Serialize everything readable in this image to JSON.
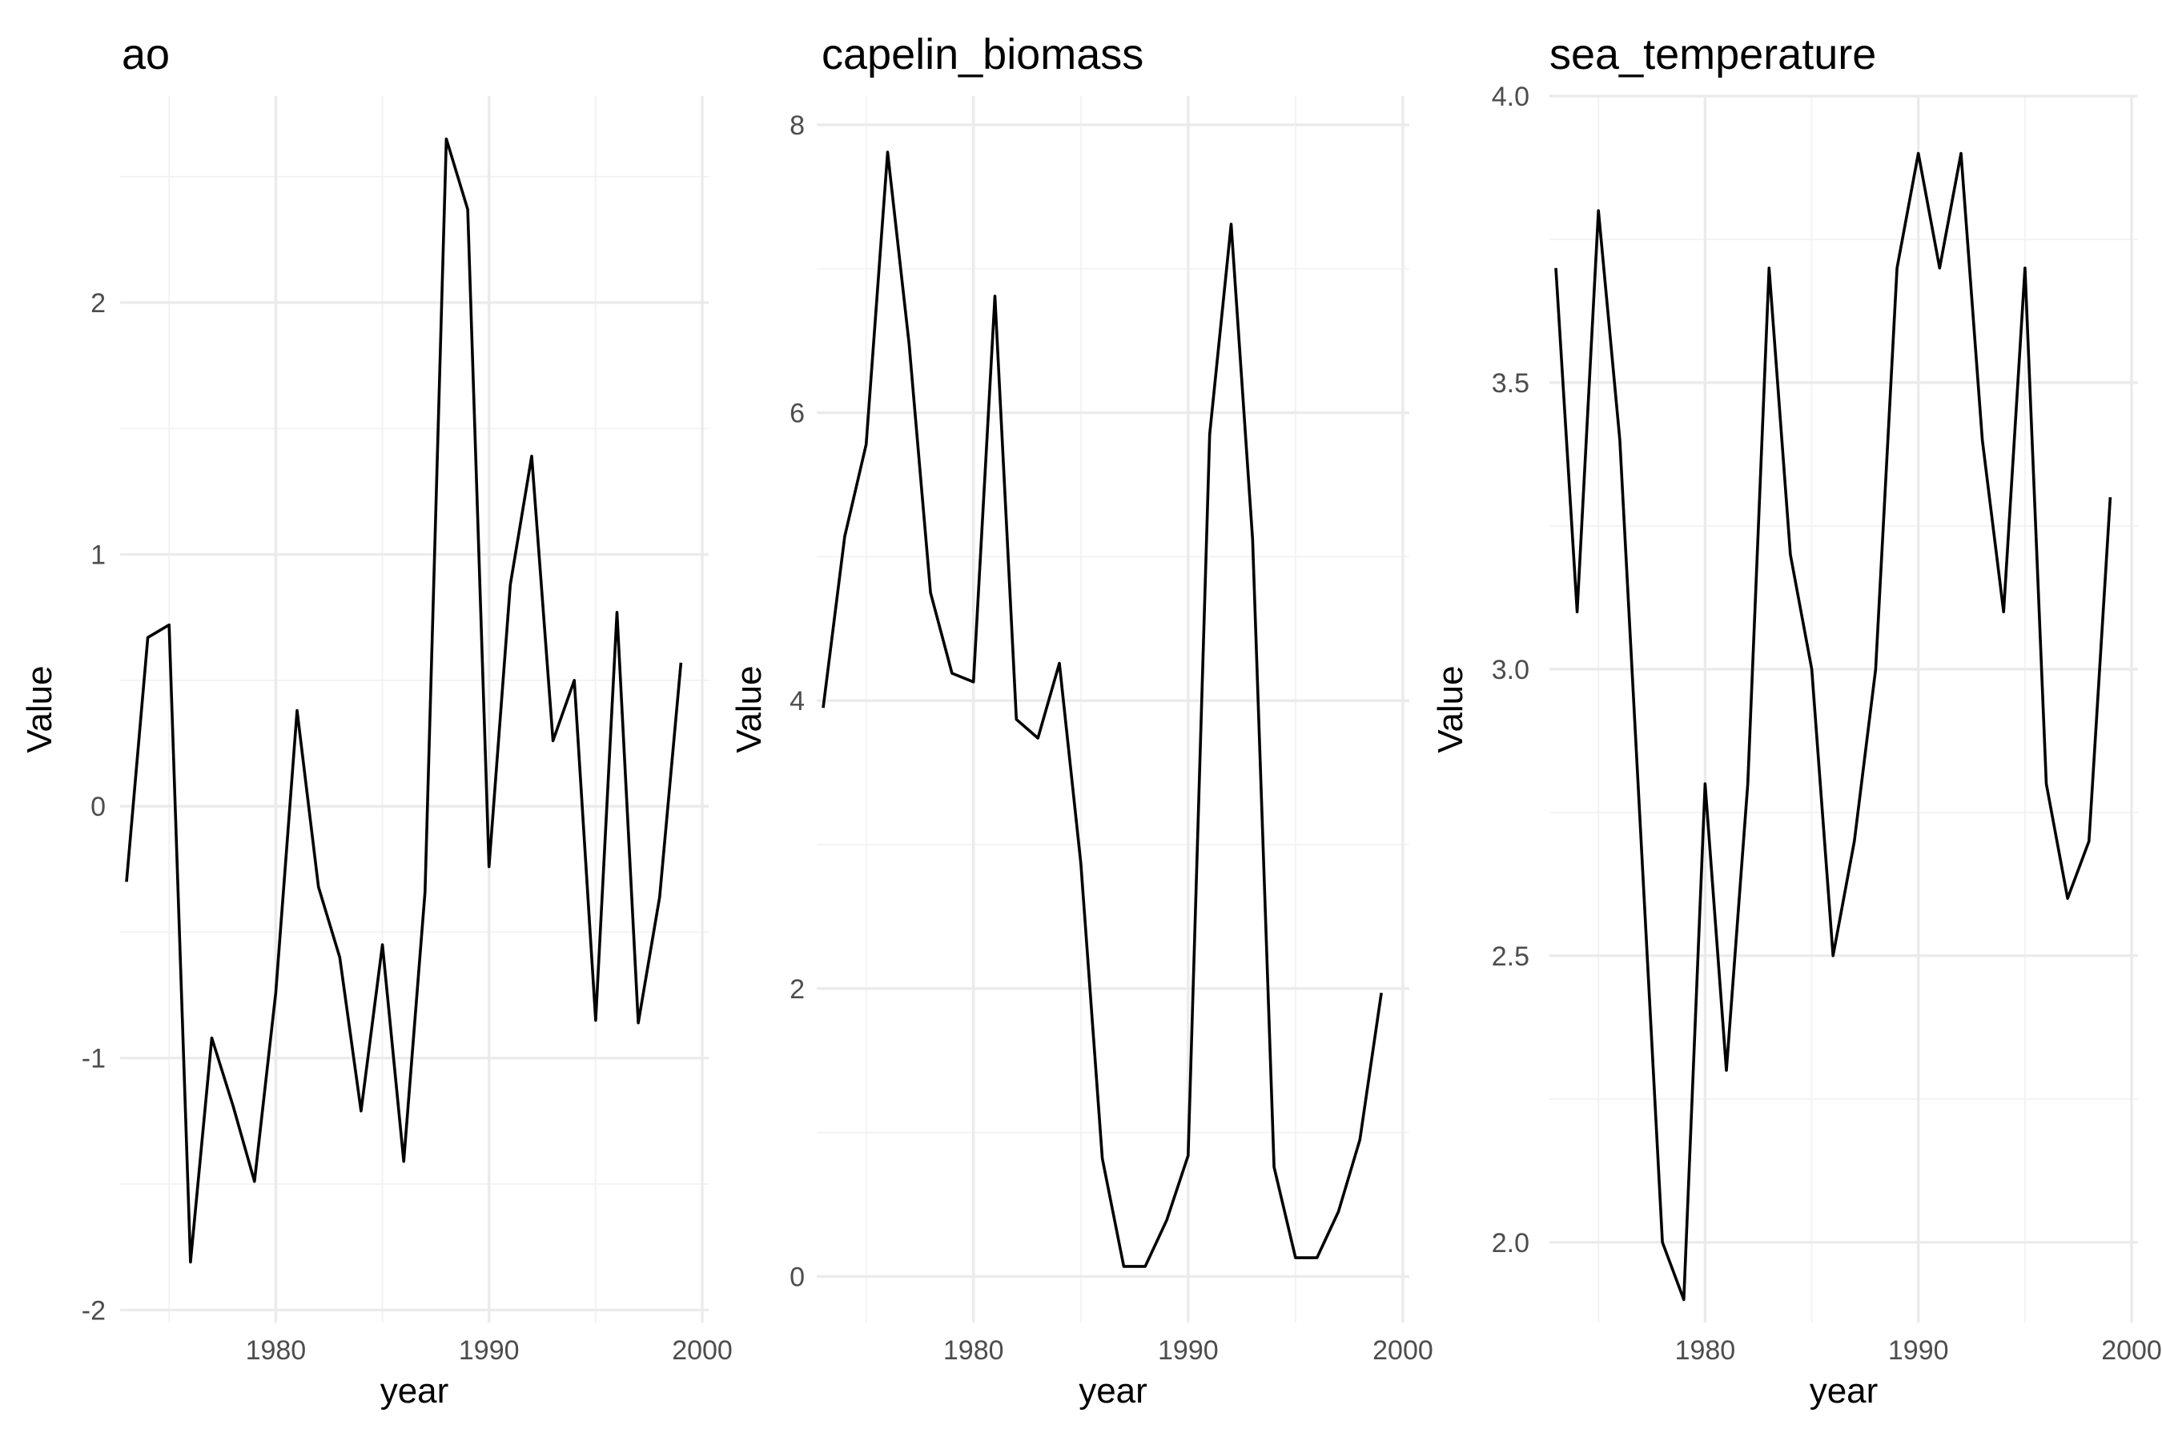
{
  "chart_data": [
    {
      "type": "line",
      "title": "ao",
      "xlabel": "year",
      "ylabel": "Value",
      "xlim": [
        1972.7,
        2000.3
      ],
      "ylim": [
        -2.05,
        2.82
      ],
      "x_ticks": [
        1980,
        1990,
        2000
      ],
      "y_ticks": [
        -2,
        -1,
        0,
        1,
        2
      ],
      "y_tick_labels": [
        "-2",
        "-1",
        "0",
        "1",
        "2"
      ],
      "grid": true,
      "series": [
        {
          "x": [
            1973,
            1974,
            1975,
            1976,
            1977,
            1978,
            1979,
            1980,
            1981,
            1982,
            1983,
            1984,
            1985,
            1986,
            1987,
            1988,
            1989,
            1990,
            1991,
            1992,
            1993,
            1994,
            1995,
            1996,
            1997,
            1998,
            1999
          ],
          "values": [
            -0.3,
            0.67,
            0.72,
            -1.81,
            -0.92,
            -1.19,
            -1.49,
            -0.74,
            0.38,
            -0.32,
            -0.6,
            -1.21,
            -0.55,
            -1.41,
            -0.34,
            2.65,
            2.37,
            -0.24,
            0.88,
            1.39,
            0.26,
            0.5,
            -0.85,
            0.77,
            -0.86,
            -0.36,
            0.57
          ]
        }
      ]
    },
    {
      "type": "line",
      "title": "capelin_biomass",
      "xlabel": "year",
      "ylabel": "Value",
      "xlim": [
        1972.7,
        2000.3
      ],
      "ylim": [
        -0.32,
        8.2
      ],
      "x_ticks": [
        1980,
        1990,
        2000
      ],
      "y_ticks": [
        0,
        2,
        4,
        6,
        8
      ],
      "y_tick_labels": [
        "0",
        "2",
        "4",
        "6",
        "8"
      ],
      "grid": true,
      "series": [
        {
          "x": [
            1973,
            1974,
            1975,
            1976,
            1977,
            1978,
            1979,
            1980,
            1981,
            1982,
            1983,
            1984,
            1985,
            1986,
            1987,
            1988,
            1989,
            1990,
            1991,
            1992,
            1993,
            1994,
            1995,
            1996,
            1997,
            1998,
            1999
          ],
          "values": [
            3.95,
            5.14,
            5.78,
            7.81,
            6.48,
            4.75,
            4.19,
            4.13,
            6.81,
            3.87,
            3.74,
            4.26,
            2.87,
            0.82,
            0.07,
            0.07,
            0.39,
            0.84,
            5.85,
            7.31,
            5.12,
            0.76,
            0.13,
            0.13,
            0.45,
            0.95,
            1.97
          ]
        }
      ]
    },
    {
      "type": "line",
      "title": "sea_temperature",
      "xlabel": "year",
      "ylabel": "Value",
      "xlim": [
        1972.7,
        2000.3
      ],
      "ylim": [
        1.86,
        4.0
      ],
      "x_ticks": [
        1980,
        1990,
        2000
      ],
      "y_ticks": [
        2.0,
        2.5,
        3.0,
        3.5,
        4.0
      ],
      "y_tick_labels": [
        "2.0",
        "2.5",
        "3.0",
        "3.5",
        "4.0"
      ],
      "grid": true,
      "series": [
        {
          "x": [
            1973,
            1974,
            1975,
            1976,
            1977,
            1978,
            1979,
            1980,
            1981,
            1982,
            1983,
            1984,
            1985,
            1986,
            1987,
            1988,
            1989,
            1990,
            1991,
            1992,
            1993,
            1994,
            1995,
            1996,
            1997,
            1998,
            1999
          ],
          "values": [
            3.7,
            3.1,
            3.8,
            3.4,
            2.7,
            2.0,
            1.9,
            2.8,
            2.3,
            2.8,
            3.7,
            3.2,
            3.0,
            2.5,
            2.7,
            3.0,
            3.7,
            3.9,
            3.7,
            3.9,
            3.4,
            3.1,
            3.7,
            2.8,
            2.6,
            2.7,
            3.3
          ]
        }
      ]
    }
  ]
}
